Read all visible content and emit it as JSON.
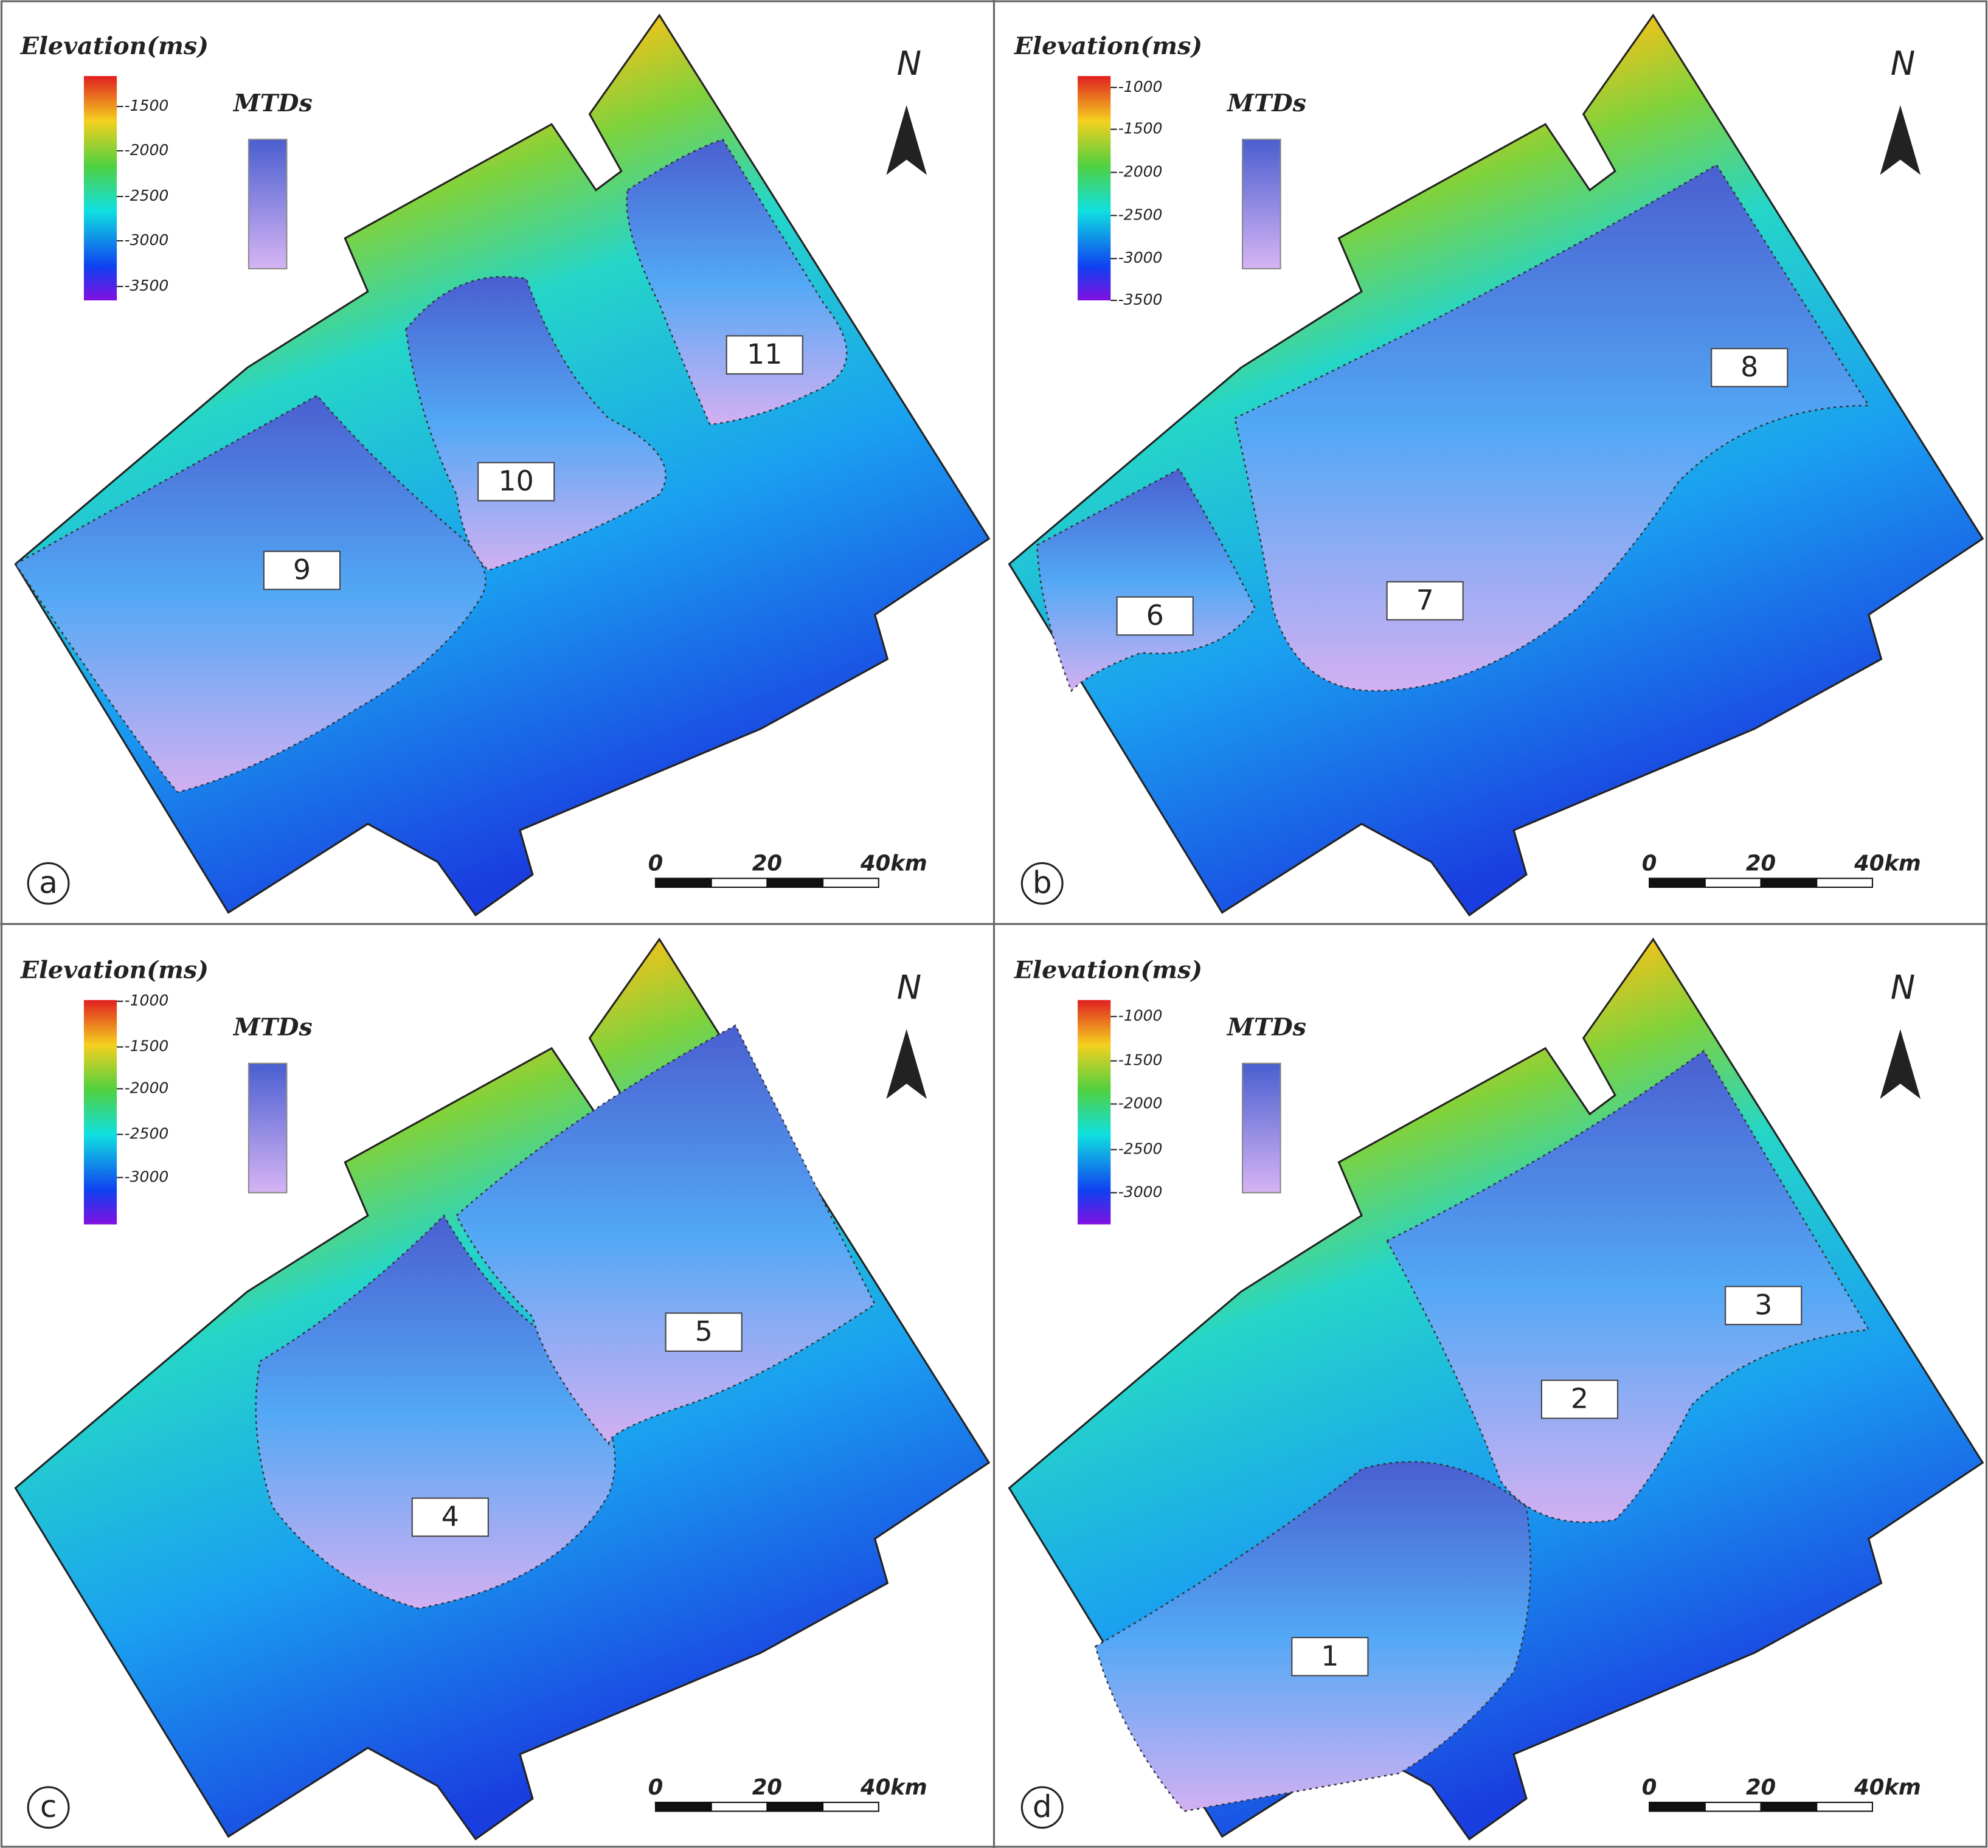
{
  "panels": [
    {
      "letter": "a",
      "legend_title": "Elevation(ms)",
      "colorbar_ticks": [
        -1500,
        -2000,
        -2500,
        -3000,
        -3500
      ],
      "mtd_legend": "MTDs",
      "north": "N",
      "scale": [
        0,
        20,
        "40km"
      ],
      "mtds": [
        "9",
        "10",
        "11"
      ]
    },
    {
      "letter": "b",
      "legend_title": "Elevation(ms)",
      "colorbar_ticks": [
        -1000,
        -1500,
        -2000,
        -2500,
        -3000,
        -3500
      ],
      "mtd_legend": "MTDs",
      "north": "N",
      "scale": [
        0,
        20,
        "40km"
      ],
      "mtds": [
        "6",
        "7",
        "8"
      ]
    },
    {
      "letter": "c",
      "legend_title": "Elevation(ms)",
      "colorbar_ticks": [
        -1000,
        -1500,
        -2000,
        -2500,
        -3000
      ],
      "mtd_legend": "MTDs",
      "north": "N",
      "scale": [
        0,
        20,
        "40km"
      ],
      "mtds": [
        "4",
        "5"
      ]
    },
    {
      "letter": "d",
      "legend_title": "Elevation(ms)",
      "colorbar_ticks": [
        -1000,
        -1500,
        -2000,
        -2500,
        -3000
      ],
      "mtd_legend": "MTDs",
      "north": "N",
      "scale": [
        0,
        20,
        "40km"
      ],
      "mtds": [
        "1",
        "2",
        "3"
      ]
    }
  ]
}
